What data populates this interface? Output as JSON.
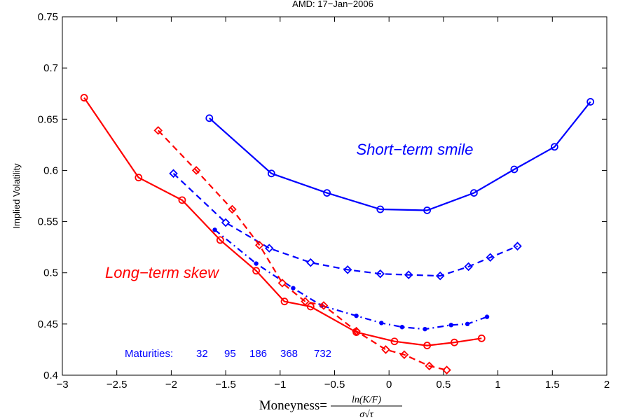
{
  "chart_data": {
    "type": "line",
    "title": "AMD: 17−Jan−2006",
    "xlabel": "Moneyness=",
    "xlabel_numerator": "ln(K/F)",
    "xlabel_denominator": "σ√τ",
    "ylabel": "Implied Volatility",
    "xlim": [
      -3,
      2
    ],
    "ylim": [
      0.4,
      0.75
    ],
    "xticks": [
      -3,
      -2.5,
      -2,
      -1.5,
      -1,
      -0.5,
      0,
      0.5,
      1,
      1.5,
      2
    ],
    "xtick_labels": [
      "−3",
      "−2.5",
      "−2",
      "−1.5",
      "−1",
      "−0.5",
      "0",
      "0.5",
      "1",
      "1.5",
      "2"
    ],
    "yticks": [
      0.4,
      0.45,
      0.5,
      0.55,
      0.6,
      0.65,
      0.7,
      0.75
    ],
    "ytick_labels": [
      "0.4",
      "0.45",
      "0.5",
      "0.55",
      "0.6",
      "0.65",
      "0.7",
      "0.75"
    ],
    "grid": false,
    "series": [
      {
        "color": "#0000ff",
        "line": "solid",
        "marker": "circle",
        "points": [
          [
            -1.65,
            0.651
          ],
          [
            -1.08,
            0.597
          ],
          [
            -0.57,
            0.578
          ],
          [
            -0.08,
            0.562
          ],
          [
            0.35,
            0.561
          ],
          [
            0.78,
            0.578
          ],
          [
            1.15,
            0.601
          ],
          [
            1.52,
            0.623
          ],
          [
            1.85,
            0.667
          ]
        ]
      },
      {
        "color": "#0000ff",
        "line": "dashed",
        "marker": "diamond",
        "points": [
          [
            -1.98,
            0.597
          ],
          [
            -1.5,
            0.549
          ],
          [
            -1.1,
            0.524
          ],
          [
            -0.72,
            0.51
          ],
          [
            -0.38,
            0.503
          ],
          [
            -0.08,
            0.499
          ],
          [
            0.18,
            0.498
          ],
          [
            0.47,
            0.497
          ],
          [
            0.73,
            0.506
          ],
          [
            0.93,
            0.515
          ],
          [
            1.18,
            0.526
          ]
        ]
      },
      {
        "color": "#0000ff",
        "line": "dashdot",
        "marker": "dot",
        "points": [
          [
            -1.6,
            0.542
          ],
          [
            -1.22,
            0.509
          ],
          [
            -0.88,
            0.485
          ],
          [
            -0.62,
            0.468
          ],
          [
            -0.3,
            0.458
          ],
          [
            -0.07,
            0.451
          ],
          [
            0.12,
            0.447
          ],
          [
            0.33,
            0.445
          ],
          [
            0.57,
            0.449
          ],
          [
            0.72,
            0.45
          ],
          [
            0.9,
            0.457
          ]
        ]
      },
      {
        "color": "#ff0000",
        "line": "dashed",
        "marker": "diamond",
        "points": [
          [
            -2.12,
            0.639
          ],
          [
            -1.77,
            0.6
          ],
          [
            -1.44,
            0.562
          ],
          [
            -1.19,
            0.527
          ],
          [
            -0.98,
            0.49
          ],
          [
            -0.77,
            0.472
          ],
          [
            -0.6,
            0.468
          ],
          [
            -0.3,
            0.443
          ],
          [
            -0.03,
            0.425
          ],
          [
            0.14,
            0.42
          ],
          [
            0.37,
            0.409
          ],
          [
            0.53,
            0.405
          ]
        ]
      },
      {
        "color": "#ff0000",
        "line": "solid",
        "marker": "circle",
        "points": [
          [
            -2.8,
            0.671
          ],
          [
            -2.3,
            0.593
          ],
          [
            -1.9,
            0.571
          ],
          [
            -1.55,
            0.532
          ],
          [
            -1.22,
            0.502
          ],
          [
            -0.96,
            0.472
          ],
          [
            -0.72,
            0.467
          ],
          [
            -0.3,
            0.442
          ],
          [
            0.05,
            0.433
          ],
          [
            0.35,
            0.429
          ],
          [
            0.6,
            0.432
          ],
          [
            0.85,
            0.436
          ]
        ]
      }
    ],
    "annotations": [
      {
        "text": "Short−term smile",
        "color": "#0000ff"
      },
      {
        "text": "Long−term skew",
        "color": "#ff0000"
      }
    ],
    "maturities_label": "Maturities:",
    "maturities": [
      "32",
      "95",
      "186",
      "368",
      "732"
    ]
  }
}
